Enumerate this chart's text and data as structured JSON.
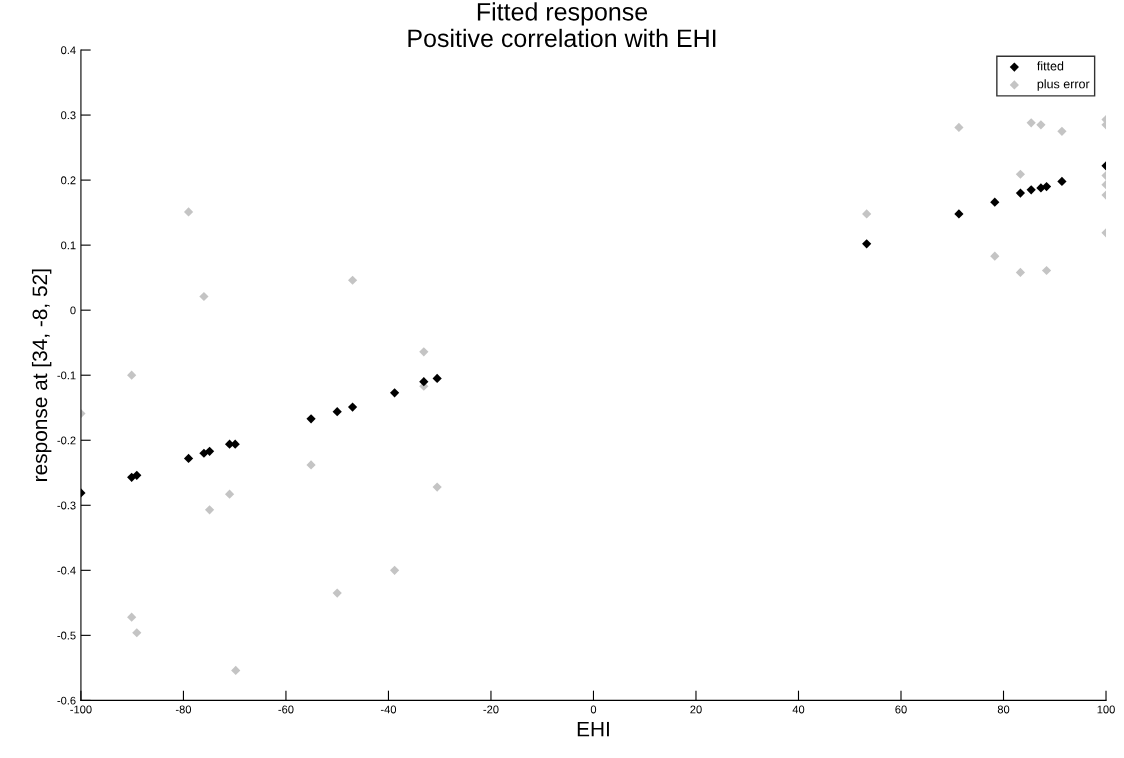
{
  "chart_data": {
    "type": "scatter",
    "title": "Fitted response",
    "subtitle": "Positive correlation with EHI",
    "xlabel": "EHI",
    "ylabel": "response at [34, -8, 52]",
    "series": [
      {
        "name": "fitted",
        "color": "#000000",
        "x": [
          -100,
          -90.1,
          -89.1,
          -79.0,
          -76.0,
          -74.9,
          -71.0,
          -69.9,
          -55.1,
          -50.0,
          -47.0,
          -38.8,
          -33.1,
          -30.5,
          53.3,
          71.3,
          78.3,
          83.3,
          85.4,
          87.3,
          88.4,
          91.4,
          100
        ],
        "values": [
          -0.281,
          -0.257,
          -0.254,
          -0.228,
          -0.22,
          -0.217,
          -0.206,
          -0.206,
          -0.167,
          -0.156,
          -0.149,
          -0.127,
          -0.11,
          -0.105,
          0.102,
          0.148,
          0.166,
          0.18,
          0.185,
          0.188,
          0.19,
          0.198,
          0.222
        ]
      },
      {
        "name": "plus error",
        "color": "#c4c4c4",
        "x": [
          -100,
          -90.1,
          -90.1,
          -89.1,
          -79.0,
          -76.0,
          -74.9,
          -71.0,
          -69.8,
          -55.1,
          -50.0,
          -47.0,
          -38.8,
          -33.1,
          -33.1,
          -30.5,
          53.3,
          71.3,
          78.3,
          83.3,
          83.3,
          85.4,
          87.3,
          88.4,
          91.4,
          100,
          100,
          100,
          100,
          100,
          100
        ],
        "values": [
          -0.159,
          -0.1,
          -0.472,
          -0.496,
          0.151,
          0.021,
          -0.307,
          -0.283,
          -0.554,
          -0.238,
          -0.435,
          0.046,
          -0.4,
          -0.064,
          -0.117,
          -0.272,
          0.148,
          0.281,
          0.083,
          0.209,
          0.058,
          0.288,
          0.285,
          0.061,
          0.275,
          0.293,
          0.285,
          0.207,
          0.193,
          0.177,
          0.119
        ]
      }
    ],
    "xlim": [
      -100,
      100
    ],
    "xticks": [
      -100,
      -80,
      -60,
      -40,
      -20,
      0,
      20,
      40,
      60,
      80,
      100
    ],
    "ylim": [
      -0.6,
      0.4
    ],
    "yticks": [
      -0.6,
      -0.5,
      -0.4,
      -0.3,
      -0.2,
      -0.1,
      0,
      0.1,
      0.2,
      0.3,
      0.4
    ],
    "marker": "diamond",
    "legend": "top right",
    "grid": false
  }
}
